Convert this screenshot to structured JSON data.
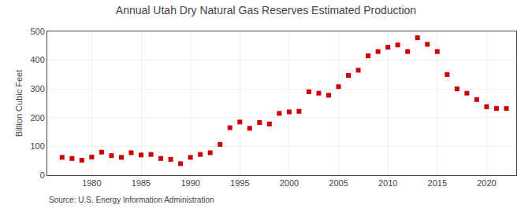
{
  "chart_data": {
    "type": "scatter",
    "title": "Annual Utah Dry Natural Gas Reserves Estimated Production",
    "y_label": "Billion Cubic Feet",
    "annotations": [
      "Source: U.S. Energy Information Administration"
    ],
    "x": [
      1977,
      1978,
      1979,
      1980,
      1981,
      1982,
      1983,
      1984,
      1985,
      1986,
      1987,
      1988,
      1989,
      1990,
      1991,
      1992,
      1993,
      1994,
      1995,
      1996,
      1997,
      1998,
      1999,
      2000,
      2001,
      2002,
      2003,
      2004,
      2005,
      2006,
      2007,
      2008,
      2009,
      2010,
      2011,
      2012,
      2013,
      2014,
      2015,
      2016,
      2017,
      2018,
      2019,
      2020,
      2021,
      2022
    ],
    "values": [
      62,
      58,
      52,
      63,
      80,
      68,
      62,
      78,
      70,
      72,
      58,
      55,
      40,
      62,
      72,
      78,
      107,
      165,
      185,
      163,
      183,
      178,
      215,
      220,
      222,
      290,
      285,
      278,
      308,
      347,
      365,
      415,
      430,
      445,
      453,
      430,
      478,
      455,
      430,
      350,
      300,
      285,
      263,
      238,
      232,
      232
    ],
    "color": "#cc0000",
    "marker": "square",
    "xlim": [
      1975.5,
      2023
    ],
    "ylim": [
      0,
      500
    ],
    "xticks": [
      1980,
      1985,
      1990,
      1995,
      2000,
      2005,
      2010,
      2015,
      2020
    ],
    "yticks": [
      0,
      100,
      200,
      300,
      400,
      500
    ],
    "grid": true
  }
}
